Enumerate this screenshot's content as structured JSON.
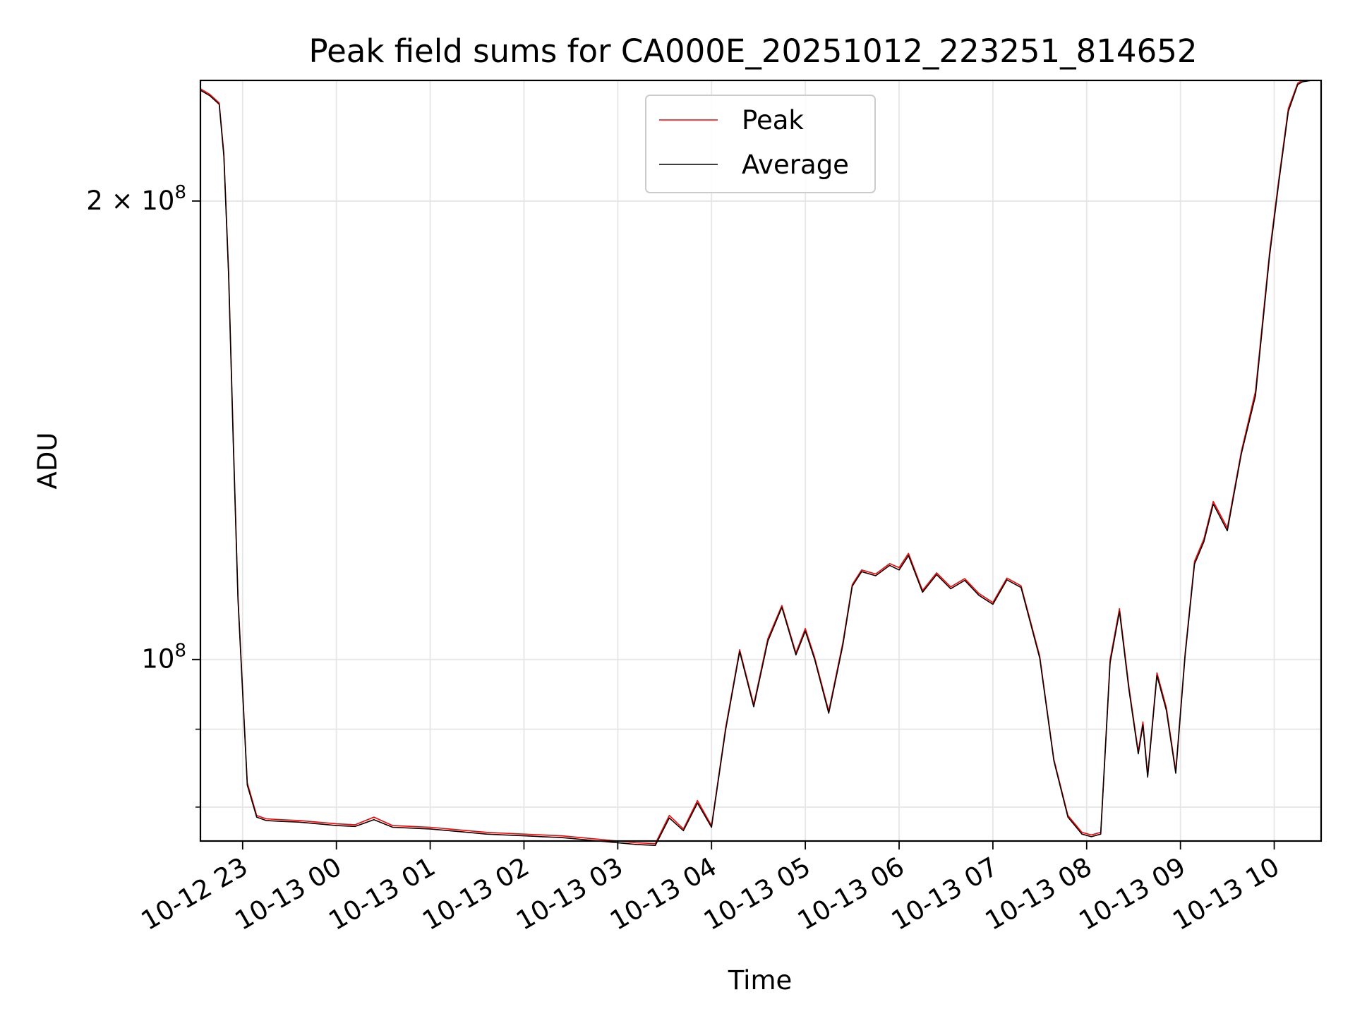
{
  "chart_data": {
    "type": "line",
    "title": "Peak field sums for CA000E_20251012_223251_814652",
    "xlabel": "Time",
    "ylabel": "ADU",
    "yscale": "log",
    "xlim_hours": [
      -1.45,
      10.5
    ],
    "ylim": [
      76000000,
      240000000
    ],
    "grid": true,
    "legend_position": "top-center",
    "x_tick_labels": [
      "10-12 23",
      "10-13 00",
      "10-13 01",
      "10-13 02",
      "10-13 03",
      "10-13 04",
      "10-13 05",
      "10-13 06",
      "10-13 07",
      "10-13 08",
      "10-13 09",
      "10-13 10"
    ],
    "x_tick_hours": [
      -1,
      0,
      1,
      2,
      3,
      4,
      5,
      6,
      7,
      8,
      9,
      10
    ],
    "y_major_ticks": [
      {
        "value": 100000000,
        "base": "10",
        "exp": "8",
        "coef": ""
      },
      {
        "value": 200000000,
        "base": "10",
        "exp": "8",
        "coef": "2 × "
      }
    ],
    "y_minor_ticks": [
      80000000,
      90000000
    ],
    "series": [
      {
        "name": "Peak",
        "color": "#ff0000",
        "x_hours": [
          -1.45,
          -1.35,
          -1.25,
          -1.2,
          -1.15,
          -1.1,
          -1.05,
          -0.95,
          -0.85,
          -0.75,
          -0.6,
          -0.4,
          -0.2,
          0,
          0.2,
          0.4,
          0.6,
          0.8,
          1.0,
          1.2,
          1.4,
          1.6,
          1.8,
          2.0,
          2.2,
          2.4,
          2.6,
          2.8,
          3.0,
          3.2,
          3.4,
          3.55,
          3.7,
          3.85,
          4.0,
          4.15,
          4.3,
          4.45,
          4.6,
          4.75,
          4.9,
          5.0,
          5.1,
          5.25,
          5.4,
          5.5,
          5.6,
          5.75,
          5.9,
          6.0,
          6.1,
          6.25,
          6.4,
          6.55,
          6.7,
          6.85,
          7.0,
          7.15,
          7.3,
          7.5,
          7.65,
          7.8,
          7.95,
          8.05,
          8.15,
          8.25,
          8.35,
          8.45,
          8.55,
          8.6,
          8.65,
          8.75,
          8.85,
          8.95,
          9.05,
          9.15,
          9.25,
          9.35,
          9.5,
          9.65,
          9.8,
          9.95,
          10.05,
          10.15,
          10.25,
          10.3,
          10.4,
          10.5
        ],
        "y": [
          237000000,
          235000000,
          232000000,
          215000000,
          180000000,
          140000000,
          110000000,
          83000000,
          79000000,
          78600000,
          78500000,
          78400000,
          78200000,
          78000000,
          77900000,
          78800000,
          77800000,
          77700000,
          77600000,
          77400000,
          77200000,
          77000000,
          76900000,
          76800000,
          76700000,
          76600000,
          76400000,
          76200000,
          76000000,
          75800000,
          75700000,
          79000000,
          77400000,
          80800000,
          77800000,
          90200000,
          101500000,
          93400000,
          103200000,
          108500000,
          101000000,
          104800000,
          100300000,
          92500000,
          102600000,
          112000000,
          114500000,
          113800000,
          115600000,
          114900000,
          117400000,
          111000000,
          114000000,
          111600000,
          113000000,
          110500000,
          109000000,
          113100000,
          111800000,
          100500000,
          86000000,
          79000000,
          77000000,
          76700000,
          77000000,
          100000000,
          108000000,
          96000000,
          87000000,
          91000000,
          84000000,
          98000000,
          93000000,
          84500000,
          101000000,
          116000000,
          120000000,
          127000000,
          122000000,
          137000000,
          150000000,
          185000000,
          207000000,
          230000000,
          239000000,
          240000000,
          240000000,
          240000000
        ]
      },
      {
        "name": "Average",
        "color": "#000000",
        "x_hours": [
          -1.45,
          -1.35,
          -1.25,
          -1.2,
          -1.15,
          -1.1,
          -1.05,
          -0.95,
          -0.85,
          -0.75,
          -0.6,
          -0.4,
          -0.2,
          0,
          0.2,
          0.4,
          0.6,
          0.8,
          1.0,
          1.2,
          1.4,
          1.6,
          1.8,
          2.0,
          2.2,
          2.4,
          2.6,
          2.8,
          3.0,
          3.2,
          3.4,
          3.55,
          3.7,
          3.85,
          4.0,
          4.15,
          4.3,
          4.45,
          4.6,
          4.75,
          4.9,
          5.0,
          5.1,
          5.25,
          5.4,
          5.5,
          5.6,
          5.75,
          5.9,
          6.0,
          6.1,
          6.25,
          6.4,
          6.55,
          6.7,
          6.85,
          7.0,
          7.15,
          7.3,
          7.5,
          7.65,
          7.8,
          7.95,
          8.05,
          8.15,
          8.25,
          8.35,
          8.45,
          8.55,
          8.6,
          8.65,
          8.75,
          8.85,
          8.95,
          9.05,
          9.15,
          9.25,
          9.35,
          9.5,
          9.65,
          9.8,
          9.95,
          10.05,
          10.15,
          10.25,
          10.3,
          10.4,
          10.5
        ],
        "y": [
          236500000,
          234500000,
          231500000,
          214000000,
          179000000,
          139000000,
          109500000,
          82700000,
          78800000,
          78400000,
          78300000,
          78200000,
          78000000,
          77800000,
          77700000,
          78500000,
          77600000,
          77500000,
          77400000,
          77200000,
          77000000,
          76800000,
          76700000,
          76600000,
          76500000,
          76400000,
          76200000,
          76000000,
          75800000,
          75600000,
          75500000,
          78700000,
          77200000,
          80500000,
          77600000,
          89900000,
          101200000,
          93100000,
          102800000,
          108200000,
          100700000,
          104400000,
          100000000,
          92200000,
          102200000,
          111700000,
          114200000,
          113500000,
          115300000,
          114500000,
          117000000,
          110700000,
          113700000,
          111300000,
          112700000,
          110200000,
          108700000,
          112800000,
          111500000,
          100200000,
          85800000,
          78800000,
          76800000,
          76500000,
          76800000,
          99500000,
          107500000,
          95600000,
          86700000,
          90600000,
          83700000,
          97600000,
          92600000,
          84200000,
          100600000,
          115500000,
          119500000,
          126500000,
          121500000,
          136500000,
          149000000,
          184000000,
          206000000,
          229000000,
          238500000,
          239500000,
          240000000,
          240000000
        ]
      }
    ]
  }
}
